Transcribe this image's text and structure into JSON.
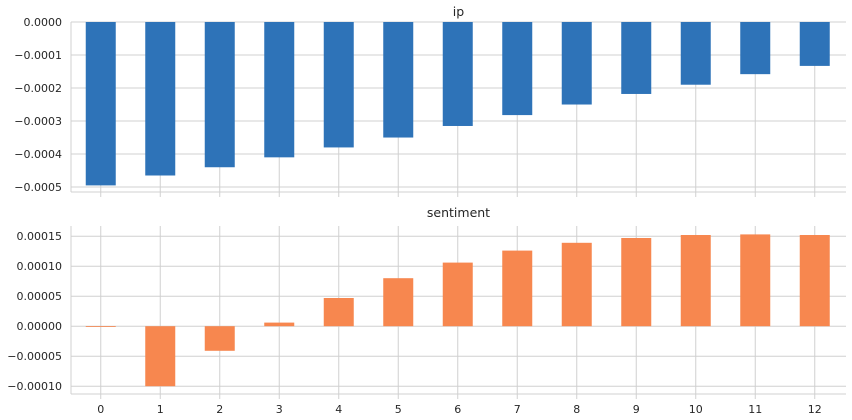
{
  "chart_data": [
    {
      "type": "bar",
      "title": "ip",
      "color": "#2e73b8",
      "categories": [
        "0",
        "1",
        "2",
        "3",
        "4",
        "5",
        "6",
        "7",
        "8",
        "9",
        "10",
        "11",
        "12"
      ],
      "values": [
        -0.000495,
        -0.000465,
        -0.00044,
        -0.00041,
        -0.00038,
        -0.00035,
        -0.000315,
        -0.000282,
        -0.00025,
        -0.000218,
        -0.00019,
        -0.000158,
        -0.000133
      ],
      "ylim": [
        -0.000515,
        0.0
      ],
      "yticks": [
        0.0,
        -0.0001,
        -0.0002,
        -0.0003,
        -0.0004,
        -0.0005
      ],
      "ytick_labels": [
        "0.0000",
        "−0.0001",
        "−0.0002",
        "−0.0003",
        "−0.0004",
        "−0.0005"
      ],
      "grid": true,
      "show_xtick_labels": false
    },
    {
      "type": "bar",
      "title": "sentiment",
      "color": "#f7874f",
      "categories": [
        "0",
        "1",
        "2",
        "3",
        "4",
        "5",
        "6",
        "7",
        "8",
        "9",
        "10",
        "11",
        "12"
      ],
      "values": [
        0.0,
        -0.0001,
        -4.1e-05,
        6e-06,
        4.7e-05,
        8e-05,
        0.000106,
        0.000126,
        0.000139,
        0.000147,
        0.000152,
        0.000153,
        0.000152
      ],
      "ylim": [
        -0.000113,
        0.000167
      ],
      "yticks": [
        0.00015,
        0.0001,
        5e-05,
        0.0,
        -5e-05,
        -0.0001
      ],
      "ytick_labels": [
        "0.00015",
        "0.00010",
        "0.00005",
        "0.00000",
        "−0.00005",
        "−0.00010"
      ],
      "grid": true,
      "show_xtick_labels": true
    }
  ]
}
